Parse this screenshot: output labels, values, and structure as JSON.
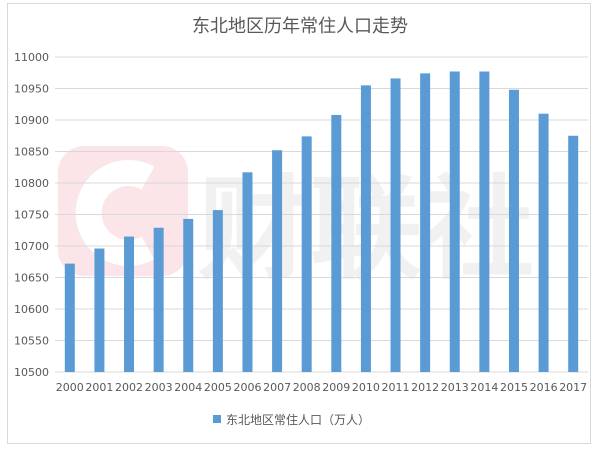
{
  "chart_data": {
    "type": "bar",
    "title": "东北地区历年常住人口走势",
    "xlabel": "",
    "ylabel": "",
    "ylim": [
      10500,
      11000
    ],
    "yticks": [
      10500,
      10550,
      10600,
      10650,
      10700,
      10750,
      10800,
      10850,
      10900,
      10950,
      11000
    ],
    "grid": true,
    "legend_position": "bottom",
    "categories": [
      "2000",
      "2001",
      "2002",
      "2003",
      "2004",
      "2005",
      "2006",
      "2007",
      "2008",
      "2009",
      "2010",
      "2011",
      "2012",
      "2013",
      "2014",
      "2015",
      "2016",
      "2017"
    ],
    "series": [
      {
        "name": "东北地区常住人口（万人）",
        "color": "#5b9bd5",
        "values": [
          10672,
          10696,
          10715,
          10729,
          10743,
          10757,
          10817,
          10852,
          10874,
          10908,
          10955,
          10966,
          10974,
          10977,
          10977,
          10948,
          10910,
          10875
        ]
      }
    ],
    "watermark": "财联社"
  }
}
